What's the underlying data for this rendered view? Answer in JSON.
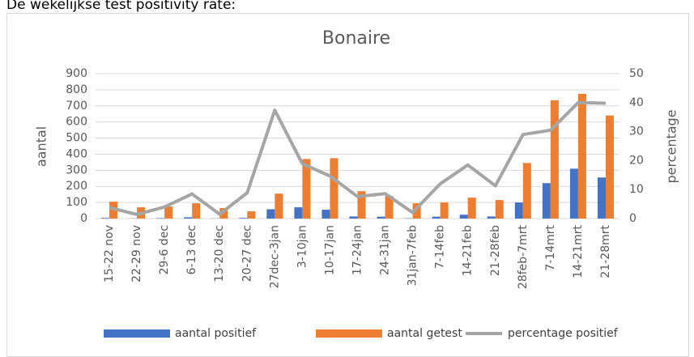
{
  "heading": "De wekelijkse test positivity rate:",
  "chart_data": {
    "type": "bar-line",
    "title": "Bonaire",
    "ylabel": "aantal",
    "y2label": "percentage",
    "categories": [
      "15-22 nov",
      "22-29 nov",
      "29-6 dec",
      "6-13 dec",
      "13-20 dec",
      "20-27 dec",
      "27dec-3jan",
      "3-10jan",
      "10-17jan",
      "17-24jan",
      "24-31jan",
      "31jan-7feb",
      "7-14feb",
      "14-21feb",
      "21-28feb",
      "28feb-7mrt",
      "7-14mrt",
      "14-21mrt",
      "21-28mrt"
    ],
    "series": [
      {
        "name": "aantal positief",
        "color": "#4472c4",
        "type": "bar",
        "values": [
          4,
          1,
          3,
          8,
          1,
          4,
          58,
          70,
          55,
          13,
          12,
          2,
          12,
          24,
          13,
          100,
          220,
          310,
          255
        ]
      },
      {
        "name": "aantal getest",
        "color": "#ed7d31",
        "type": "bar",
        "values": [
          105,
          70,
          75,
          95,
          65,
          45,
          155,
          370,
          375,
          170,
          140,
          95,
          100,
          130,
          115,
          345,
          735,
          775,
          640
        ]
      },
      {
        "name": "percentage positief",
        "color": "#a5a5a5",
        "type": "line",
        "axis": "y2",
        "values": [
          3.8,
          1.4,
          4,
          8.5,
          1.5,
          8.9,
          37.4,
          18.9,
          14.7,
          7.6,
          8.6,
          2.1,
          12,
          18.5,
          11.3,
          29,
          30.5,
          40,
          39.8
        ]
      }
    ],
    "ylim": [
      0,
      900
    ],
    "yticks": [
      0,
      100,
      200,
      300,
      400,
      500,
      600,
      700,
      800,
      900
    ],
    "y2lim": [
      0,
      50
    ],
    "y2ticks": [
      0,
      10,
      20,
      30,
      40,
      50
    ],
    "grid": true,
    "legend": "bottom"
  }
}
